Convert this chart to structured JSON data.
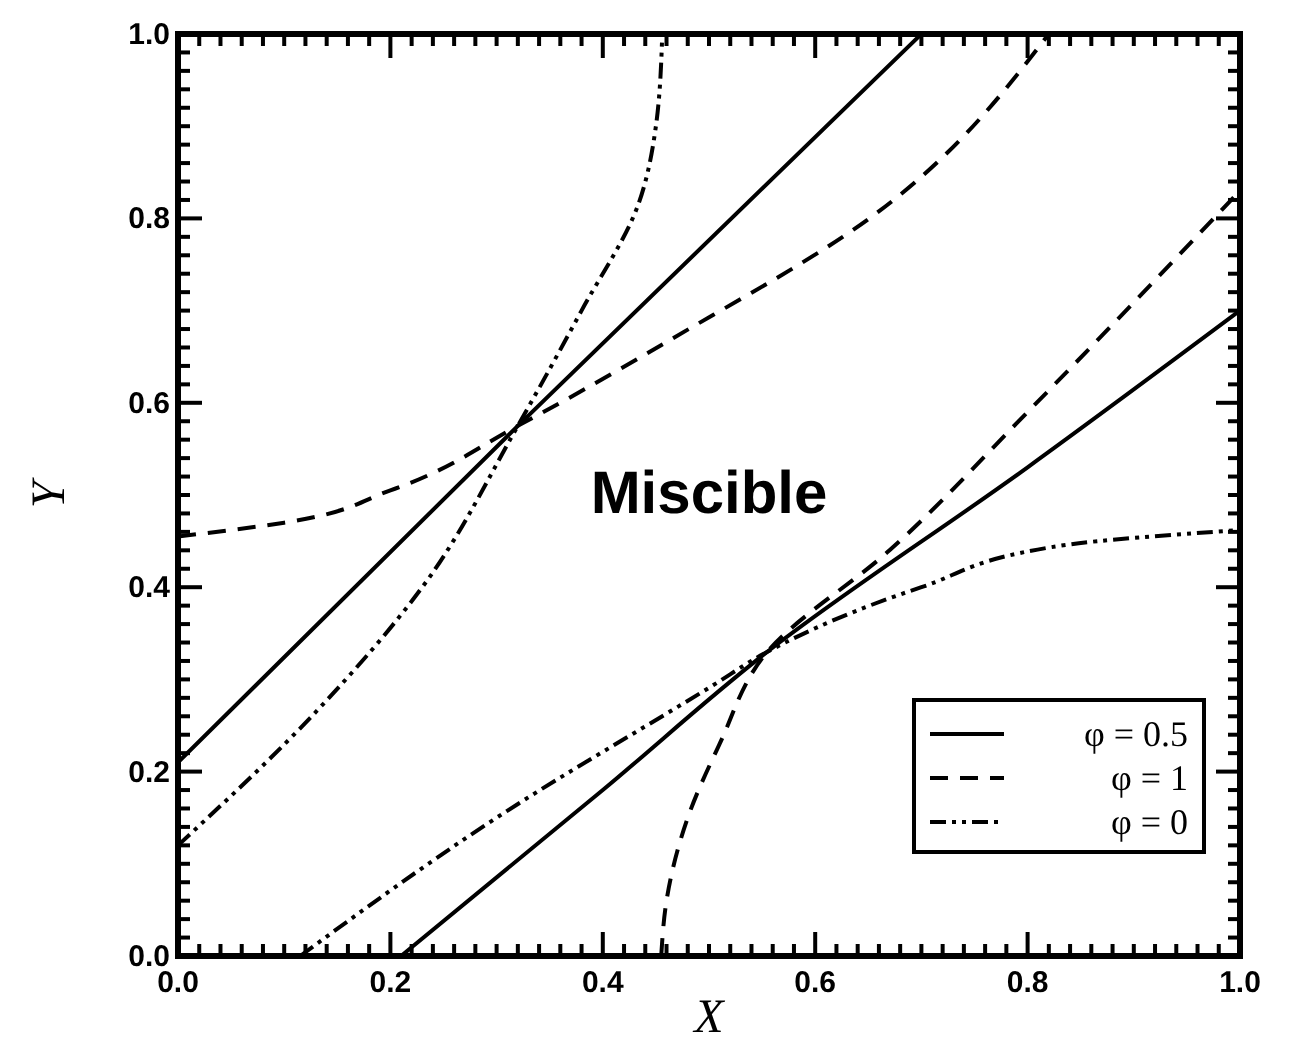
{
  "chart_data": {
    "type": "line",
    "xlabel": "X",
    "ylabel": "Y",
    "xlim": [
      0,
      1
    ],
    "ylim": [
      0,
      1
    ],
    "xticks": [
      {
        "value": 0,
        "label": "0.0"
      },
      {
        "value": 0.02,
        "label": null
      },
      {
        "value": 0.04,
        "label": null
      },
      {
        "value": 0.06,
        "label": null
      },
      {
        "value": 0.08,
        "label": null
      },
      {
        "value": 0.1,
        "label": null
      },
      {
        "value": 0.12,
        "label": null
      },
      {
        "value": 0.14,
        "label": null
      },
      {
        "value": 0.16,
        "label": null
      },
      {
        "value": 0.18,
        "label": null
      },
      {
        "value": 0.2,
        "label": "0.2"
      },
      {
        "value": 0.22,
        "label": null
      },
      {
        "value": 0.24,
        "label": null
      },
      {
        "value": 0.26,
        "label": null
      },
      {
        "value": 0.28,
        "label": null
      },
      {
        "value": 0.3,
        "label": null
      },
      {
        "value": 0.32,
        "label": null
      },
      {
        "value": 0.34,
        "label": null
      },
      {
        "value": 0.36,
        "label": null
      },
      {
        "value": 0.38,
        "label": null
      },
      {
        "value": 0.4,
        "label": "0.4"
      },
      {
        "value": 0.42,
        "label": null
      },
      {
        "value": 0.44,
        "label": null
      },
      {
        "value": 0.46,
        "label": null
      },
      {
        "value": 0.48,
        "label": null
      },
      {
        "value": 0.5,
        "label": null
      },
      {
        "value": 0.52,
        "label": null
      },
      {
        "value": 0.54,
        "label": null
      },
      {
        "value": 0.56,
        "label": null
      },
      {
        "value": 0.58,
        "label": null
      },
      {
        "value": 0.6,
        "label": "0.6"
      },
      {
        "value": 0.62,
        "label": null
      },
      {
        "value": 0.64,
        "label": null
      },
      {
        "value": 0.66,
        "label": null
      },
      {
        "value": 0.68,
        "label": null
      },
      {
        "value": 0.7,
        "label": null
      },
      {
        "value": 0.72,
        "label": null
      },
      {
        "value": 0.74,
        "label": null
      },
      {
        "value": 0.76,
        "label": null
      },
      {
        "value": 0.78,
        "label": null
      },
      {
        "value": 0.8,
        "label": "0.8"
      },
      {
        "value": 0.82,
        "label": null
      },
      {
        "value": 0.84,
        "label": null
      },
      {
        "value": 0.86,
        "label": null
      },
      {
        "value": 0.88,
        "label": null
      },
      {
        "value": 0.9,
        "label": null
      },
      {
        "value": 0.92,
        "label": null
      },
      {
        "value": 0.94,
        "label": null
      },
      {
        "value": 0.96,
        "label": null
      },
      {
        "value": 0.98,
        "label": null
      },
      {
        "value": 1,
        "label": "1.0"
      }
    ],
    "yticks": [
      {
        "value": 0,
        "label": "0.0"
      },
      {
        "value": 0.02,
        "label": null
      },
      {
        "value": 0.04,
        "label": null
      },
      {
        "value": 0.06,
        "label": null
      },
      {
        "value": 0.08,
        "label": null
      },
      {
        "value": 0.1,
        "label": null
      },
      {
        "value": 0.12,
        "label": null
      },
      {
        "value": 0.14,
        "label": null
      },
      {
        "value": 0.16,
        "label": null
      },
      {
        "value": 0.18,
        "label": null
      },
      {
        "value": 0.2,
        "label": "0.2"
      },
      {
        "value": 0.22,
        "label": null
      },
      {
        "value": 0.24,
        "label": null
      },
      {
        "value": 0.26,
        "label": null
      },
      {
        "value": 0.28,
        "label": null
      },
      {
        "value": 0.3,
        "label": null
      },
      {
        "value": 0.32,
        "label": null
      },
      {
        "value": 0.34,
        "label": null
      },
      {
        "value": 0.36,
        "label": null
      },
      {
        "value": 0.38,
        "label": null
      },
      {
        "value": 0.4,
        "label": "0.4"
      },
      {
        "value": 0.42,
        "label": null
      },
      {
        "value": 0.44,
        "label": null
      },
      {
        "value": 0.46,
        "label": null
      },
      {
        "value": 0.48,
        "label": null
      },
      {
        "value": 0.5,
        "label": null
      },
      {
        "value": 0.52,
        "label": null
      },
      {
        "value": 0.54,
        "label": null
      },
      {
        "value": 0.56,
        "label": null
      },
      {
        "value": 0.58,
        "label": null
      },
      {
        "value": 0.6,
        "label": "0.6"
      },
      {
        "value": 0.62,
        "label": null
      },
      {
        "value": 0.64,
        "label": null
      },
      {
        "value": 0.66,
        "label": null
      },
      {
        "value": 0.68,
        "label": null
      },
      {
        "value": 0.7,
        "label": null
      },
      {
        "value": 0.72,
        "label": null
      },
      {
        "value": 0.74,
        "label": null
      },
      {
        "value": 0.76,
        "label": null
      },
      {
        "value": 0.78,
        "label": null
      },
      {
        "value": 0.8,
        "label": "0.8"
      },
      {
        "value": 0.82,
        "label": null
      },
      {
        "value": 0.84,
        "label": null
      },
      {
        "value": 0.86,
        "label": null
      },
      {
        "value": 0.88,
        "label": null
      },
      {
        "value": 0.9,
        "label": null
      },
      {
        "value": 0.92,
        "label": null
      },
      {
        "value": 0.94,
        "label": null
      },
      {
        "value": 0.96,
        "label": null
      },
      {
        "value": 0.98,
        "label": null
      },
      {
        "value": 1,
        "label": "1.0"
      }
    ],
    "legend": "bottom right",
    "grid": false,
    "marker": "none",
    "annotations": [
      "Miscible"
    ],
    "series": [
      {
        "name": "φ = 0.5",
        "color": "#000000",
        "line_style": "solid",
        "x": [
          0,
          0.32,
          0.7,
          null,
          0.21,
          0.4,
          0.555,
          0.8,
          1
        ],
        "values": [
          0.21,
          0.575,
          1,
          null,
          0,
          0.18,
          0.33,
          0.53,
          0.7
        ]
      },
      {
        "name": "φ = 1",
        "color": "#000000",
        "line_style": "dashed",
        "x": [
          0,
          0.1,
          0.2,
          0.32,
          0.466,
          0.651,
          0.82,
          null,
          0.455,
          0.46,
          0.48,
          0.51,
          0.555,
          0.67,
          0.8,
          1
        ],
        "values": [
          0.455,
          0.47,
          0.505,
          0.575,
          0.67,
          0.8,
          1,
          null,
          0,
          0.06,
          0.15,
          0.23,
          0.33,
          0.44,
          0.59,
          0.83
        ]
      },
      {
        "name": "φ = 0",
        "color": "#000000",
        "line_style": "dotted",
        "x": [
          0,
          0.13,
          0.23,
          0.32,
          0.38,
          0.434,
          0.45,
          0.456,
          null,
          0.115,
          0.3,
          0.503,
          0.555,
          0.7,
          0.837,
          1
        ],
        "values": [
          0.12,
          0.265,
          0.4,
          0.575,
          0.7,
          0.817,
          0.9,
          1,
          null,
          0,
          0.15,
          0.293,
          0.33,
          0.4,
          0.446,
          0.462
        ]
      }
    ]
  }
}
